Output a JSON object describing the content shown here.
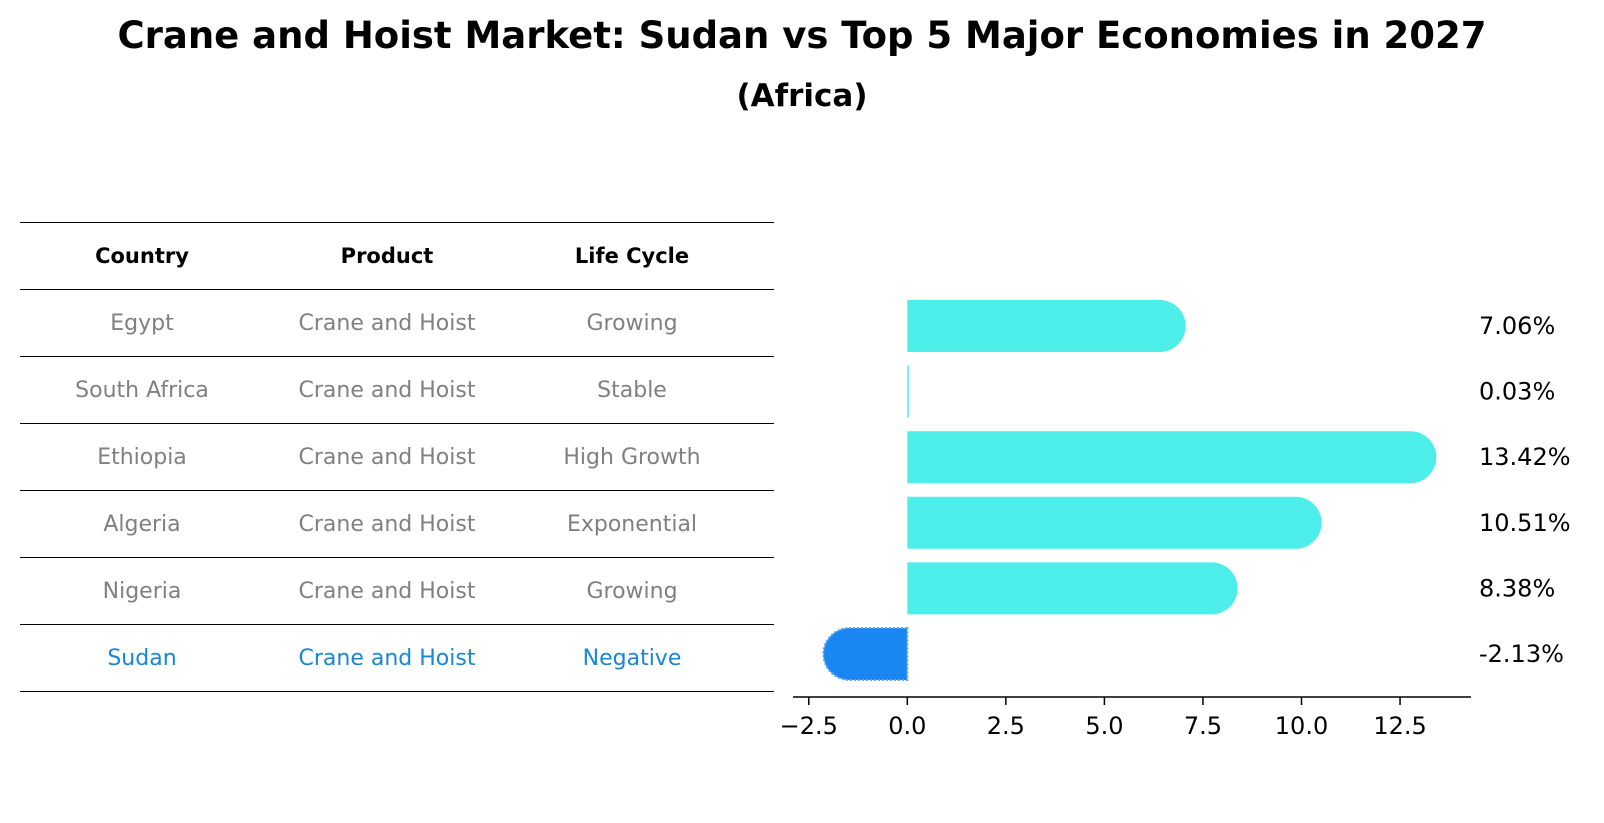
{
  "title": "Crane and Hoist Market: Sudan vs Top 5 Major Economies in 2027",
  "subtitle": "(Africa)",
  "table": {
    "headers": [
      "Country",
      "Product",
      "Life Cycle"
    ],
    "rows": [
      [
        "Egypt",
        "Crane and Hoist",
        "Growing"
      ],
      [
        "South Africa",
        "Crane and Hoist",
        "Stable"
      ],
      [
        "Ethiopia",
        "Crane and Hoist",
        "High Growth"
      ],
      [
        "Algeria",
        "Crane and Hoist",
        "Exponential"
      ],
      [
        "Nigeria",
        "Crane and Hoist",
        "Growing"
      ],
      [
        "Sudan",
        "Crane and Hoist",
        "Negative"
      ]
    ],
    "highlight_row": 5
  },
  "colors": {
    "bar": "#4dede9",
    "highlight_bar": "#1a86f2",
    "highlight_text": "#1a86d6",
    "muted_text": "#808080"
  },
  "chart_data": {
    "type": "bar",
    "orientation": "horizontal",
    "categories": [
      "Egypt",
      "South Africa",
      "Ethiopia",
      "Algeria",
      "Nigeria",
      "Sudan"
    ],
    "values": [
      7.06,
      0.03,
      13.42,
      10.51,
      8.38,
      -2.13
    ],
    "value_labels": [
      "7.06%",
      "0.03%",
      "13.42%",
      "10.51%",
      "8.38%",
      "-2.13%"
    ],
    "xlim": [
      -2.9,
      14.3
    ],
    "xticks": [
      -2.5,
      0.0,
      2.5,
      5.0,
      7.5,
      10.0,
      12.5
    ],
    "xtick_labels": [
      "−2.5",
      "0.0",
      "2.5",
      "5.0",
      "7.5",
      "10.0",
      "12.5"
    ],
    "grid": false
  }
}
